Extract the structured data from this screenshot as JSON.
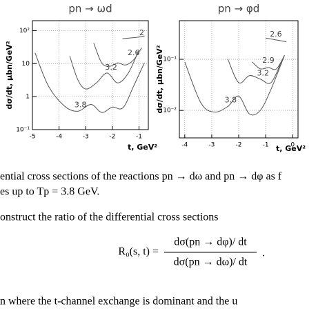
{
  "chart_data": [
    {
      "type": "line",
      "title": "pn → ωd",
      "y_label": "dσ/dt, μbn/GeV²",
      "x_label": "t, GeV²",
      "xlim": [
        -5,
        -0.65
      ],
      "xticks": [
        -5,
        -4,
        -3,
        -2,
        -1
      ],
      "ylim": [
        0.1,
        200
      ],
      "log_y": true,
      "grid": true,
      "yticks": [
        {
          "value": 0.1,
          "label": "10⁻¹"
        },
        1,
        10,
        {
          "value": 100,
          "label": "10²"
        }
      ],
      "series": [
        {
          "name": "2",
          "color": "#555555",
          "x": [
            -1.62,
            -1.31,
            -1.05,
            -0.79
          ],
          "values": [
            57,
            60,
            63,
            69
          ]
        },
        {
          "name": "2.6",
          "color": "#555555",
          "x": [
            -2.7,
            -2.4,
            -2.1,
            -1.8,
            -1.5,
            -1.2,
            -0.9
          ],
          "values": [
            42,
            10.5,
            8.3,
            10.5,
            9.1,
            13,
            30
          ]
        },
        {
          "name": "3.2",
          "color": "#555555",
          "x": [
            -3.6,
            -3.3,
            -3.0,
            -2.6,
            -2.2,
            -1.8,
            -1.4,
            -1.0
          ],
          "values": [
            17,
            3.3,
            1.7,
            2.6,
            5.2,
            2.6,
            5.2,
            26
          ]
        },
        {
          "name": "3.8",
          "color": "#555555",
          "x": [
            -4.9,
            -4.4,
            -3.8,
            -3.3,
            -2.8,
            -2.4,
            -2.0,
            -1.6,
            -1.2,
            -0.8
          ],
          "values": [
            21,
            2.1,
            0.52,
            0.36,
            0.58,
            0.33,
            0.48,
            0.46,
            2.1,
            10.5
          ]
        }
      ]
    },
    {
      "type": "line",
      "title": "pn → φd",
      "y_label": "dσ/dt, μbn/GeV²",
      "x_label": "t, GeV²",
      "xlim": [
        -4.2,
        0.2
      ],
      "xticks": [
        -4,
        -3,
        -2,
        -1,
        0
      ],
      "ylim": [
        0.0029,
        0.57
      ],
      "log_y": true,
      "grid": true,
      "yticks": [
        {
          "value": 0.01,
          "label": "10⁻²"
        },
        {
          "value": 0.1,
          "label": "10⁻¹"
        }
      ],
      "series": [
        {
          "name": "2.6",
          "color": "#555555",
          "x": [
            -1.0,
            -0.62,
            -0.23
          ],
          "values": [
            0.26,
            0.24,
            0.22
          ]
        },
        {
          "name": "2.9",
          "color": "#555555",
          "x": [
            -1.5,
            -1.2,
            -0.9,
            -0.6,
            -0.3
          ],
          "values": [
            0.089,
            0.065,
            0.069,
            0.065,
            0.12
          ]
        },
        {
          "name": "3.2",
          "color": "#555555",
          "x": [
            -2.4,
            -2.0,
            -1.6,
            -1.2,
            -0.8,
            -0.4
          ],
          "values": [
            0.1,
            0.035,
            0.048,
            0.041,
            0.035,
            0.094
          ]
        },
        {
          "name": "3.8",
          "color": "#555555",
          "x": [
            -4.0,
            -3.4,
            -2.9,
            -2.4,
            -2.0,
            -1.6,
            -1.2,
            -0.8,
            -0.3
          ],
          "values": [
            0.089,
            0.014,
            0.0093,
            0.012,
            0.019,
            0.0085,
            0.01,
            0.026,
            0.12
          ]
        }
      ]
    }
  ],
  "text": {
    "caption": [
      "ential cross sections of the reactions pn → dω and pn → dφ as f",
      "es up to Tp = 3.8 GeV."
    ],
    "paragraph": "onstruct the ratio of the differential cross sections",
    "equation": {
      "lhs": "R₀(s, t) =",
      "numerator": "dσ(pn → dφ)/ dt",
      "denominator": "dσ(pn → dω)/ dt",
      "end": "."
    },
    "last_line": "n where the t-channel exchange is dominant and the u"
  }
}
